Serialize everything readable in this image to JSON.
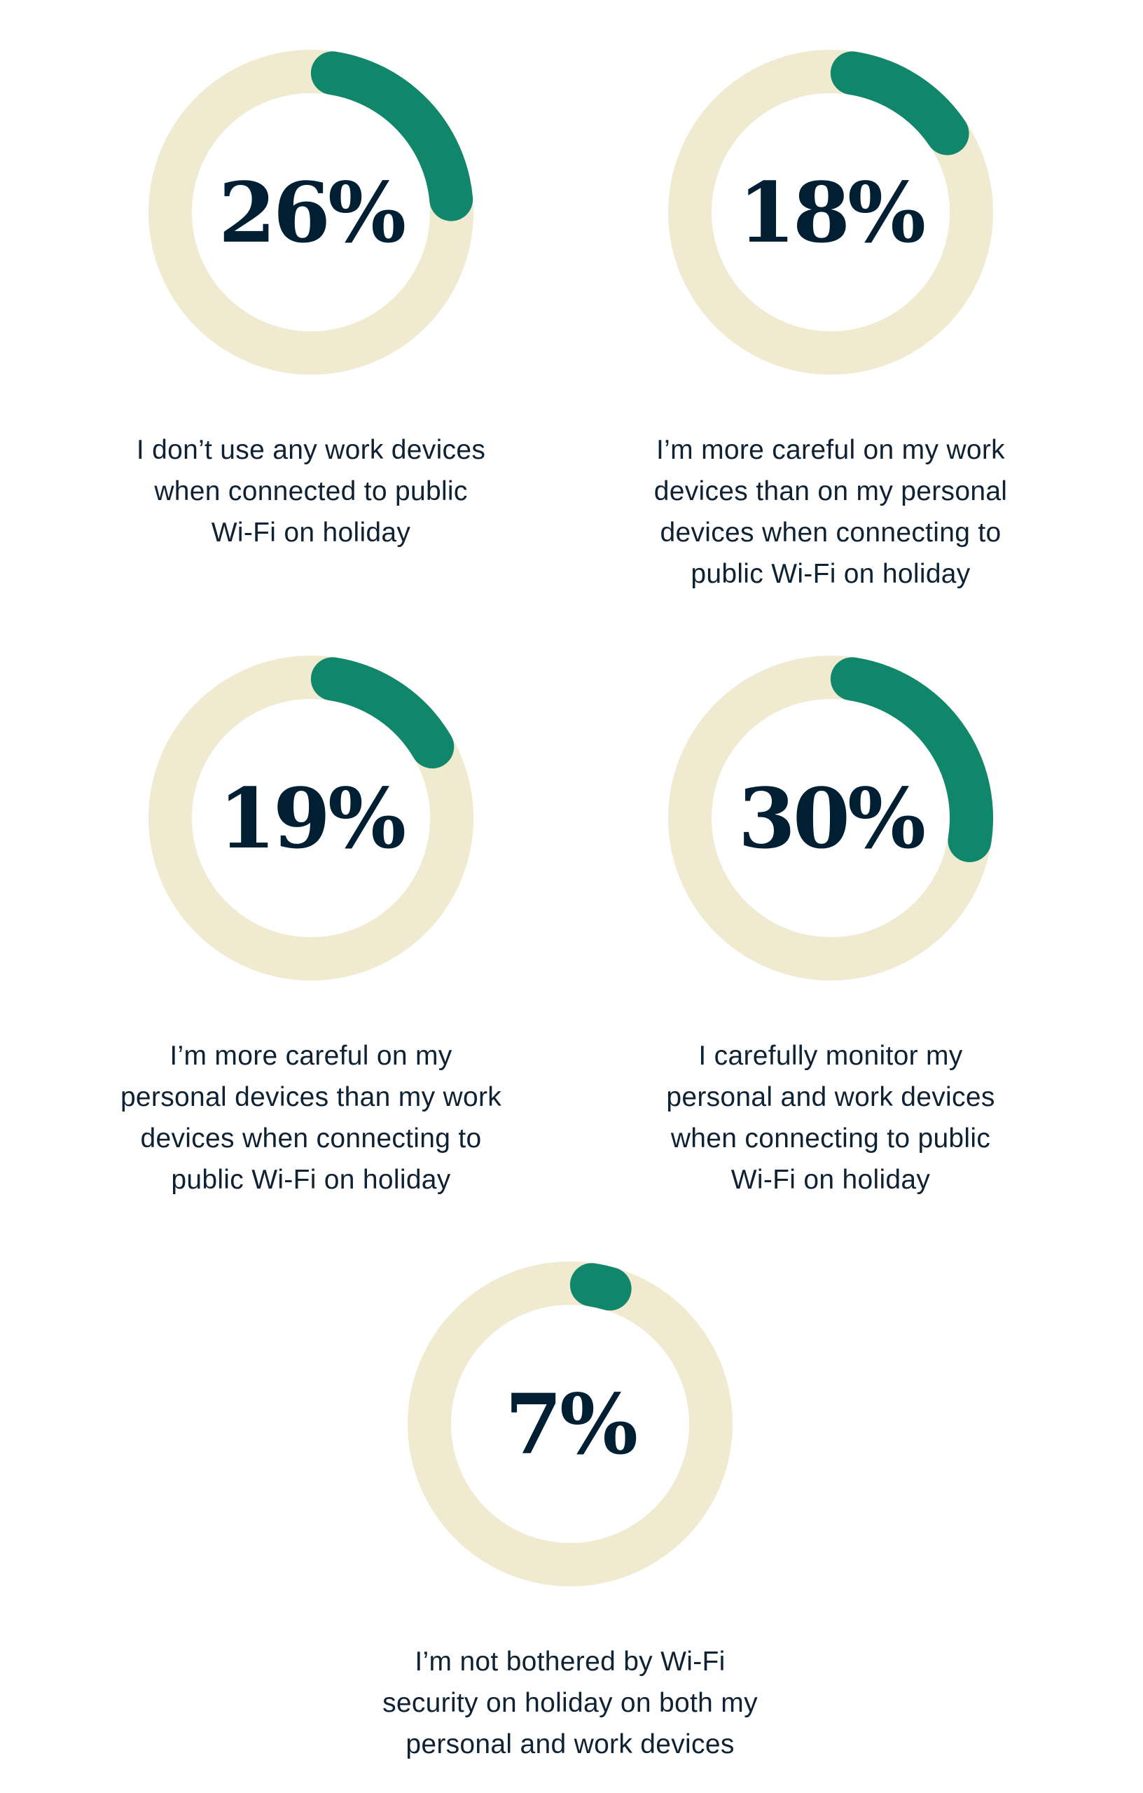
{
  "chart_data": {
    "type": "donut",
    "colors": {
      "filled": "#10876B",
      "track": "#F0EBD0",
      "value_text": "#001F33",
      "label_text": "#0F2233"
    },
    "items": [
      {
        "value": 26,
        "display": "26%",
        "label": [
          "I don’t use any work devices",
          "when connected to public",
          "Wi-Fi on holiday"
        ]
      },
      {
        "value": 18,
        "display": "18%",
        "label": [
          "I’m more careful on my work",
          "devices than on my personal",
          "devices when connecting to",
          "public Wi-Fi on holiday"
        ]
      },
      {
        "value": 19,
        "display": "19%",
        "label": [
          "I’m more careful on my",
          "personal devices than my work",
          "devices when connecting to",
          "public Wi-Fi on holiday"
        ]
      },
      {
        "value": 30,
        "display": "30%",
        "label": [
          "I carefully monitor my",
          "personal and work devices",
          "when connecting to public",
          "Wi-Fi on holiday"
        ]
      },
      {
        "value": 7,
        "display": "7%",
        "label": [
          "I’m not bothered by Wi-Fi",
          "security on holiday on both my",
          "personal and work devices"
        ]
      }
    ]
  }
}
